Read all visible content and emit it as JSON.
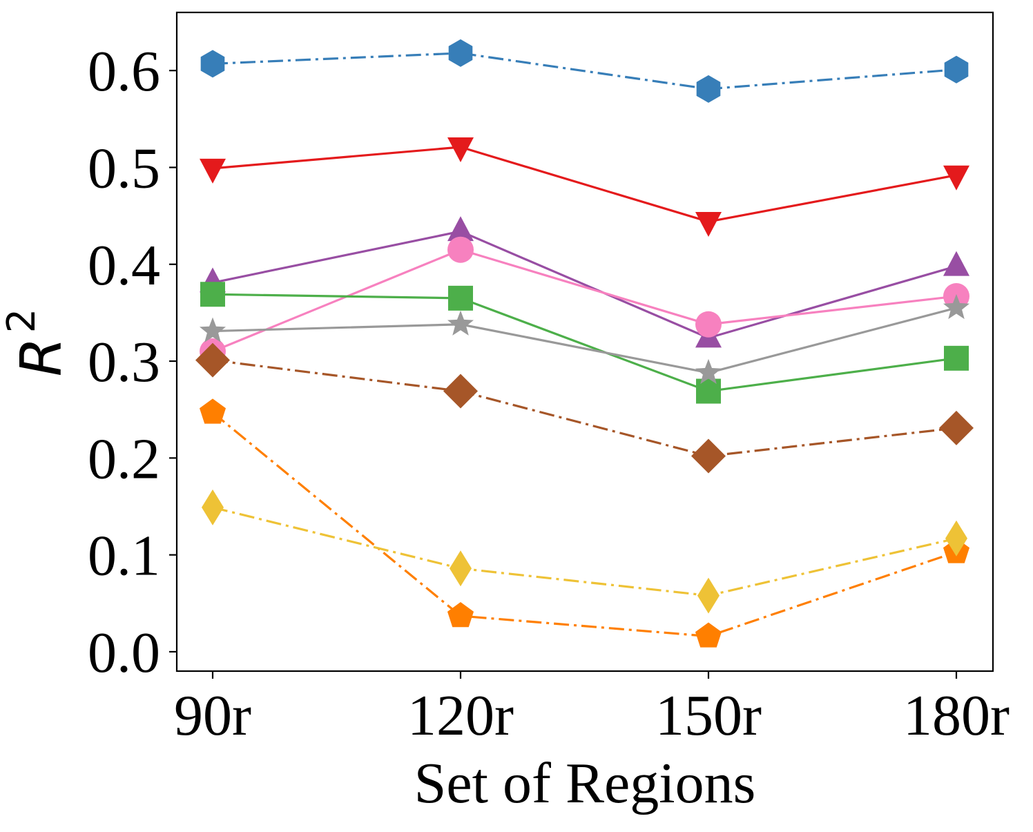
{
  "chart_data": {
    "type": "line",
    "title": "",
    "xlabel": "Set of Regions",
    "ylabel": "R",
    "ylabel_superscript": "2",
    "categories": [
      "90r",
      "120r",
      "150r",
      "180r"
    ],
    "ylim": [
      -0.02,
      0.66
    ],
    "yticks": [
      0.0,
      0.1,
      0.2,
      0.3,
      0.4,
      0.5,
      0.6
    ],
    "ytick_labels": [
      "0.0",
      "0.1",
      "0.2",
      "0.3",
      "0.4",
      "0.5",
      "0.6"
    ],
    "grid": false,
    "legend": "none",
    "series": [
      {
        "name": "blue hexagon",
        "color": "#377eb8",
        "marker": "hexagon",
        "dash": "dashdot",
        "values": [
          0.607,
          0.618,
          0.581,
          0.601
        ]
      },
      {
        "name": "red triangle-down",
        "color": "#e41a1c",
        "marker": "triangle-down",
        "dash": "solid",
        "values": [
          0.499,
          0.521,
          0.444,
          0.492
        ]
      },
      {
        "name": "purple triangle-up",
        "color": "#984ea3",
        "marker": "triangle-up",
        "dash": "solid",
        "values": [
          0.381,
          0.434,
          0.324,
          0.398
        ]
      },
      {
        "name": "pink circle",
        "color": "#f781bf",
        "marker": "circle",
        "dash": "solid",
        "values": [
          0.31,
          0.415,
          0.338,
          0.367
        ]
      },
      {
        "name": "green square",
        "color": "#4daf4a",
        "marker": "square",
        "dash": "solid",
        "values": [
          0.369,
          0.365,
          0.269,
          0.303
        ]
      },
      {
        "name": "gray star",
        "color": "#999999",
        "marker": "star",
        "dash": "solid",
        "values": [
          0.331,
          0.338,
          0.288,
          0.355
        ]
      },
      {
        "name": "brown diamond",
        "color": "#a65628",
        "marker": "diamond",
        "dash": "dashdot",
        "values": [
          0.301,
          0.269,
          0.202,
          0.231
        ]
      },
      {
        "name": "orange pentagon",
        "color": "#ff7f00",
        "marker": "pentagon",
        "dash": "dashdot",
        "values": [
          0.247,
          0.037,
          0.016,
          0.103
        ]
      },
      {
        "name": "yellow thin-diamond",
        "color": "#eec236",
        "marker": "thin-diamond",
        "dash": "dashdot",
        "values": [
          0.149,
          0.086,
          0.058,
          0.117
        ]
      }
    ]
  }
}
